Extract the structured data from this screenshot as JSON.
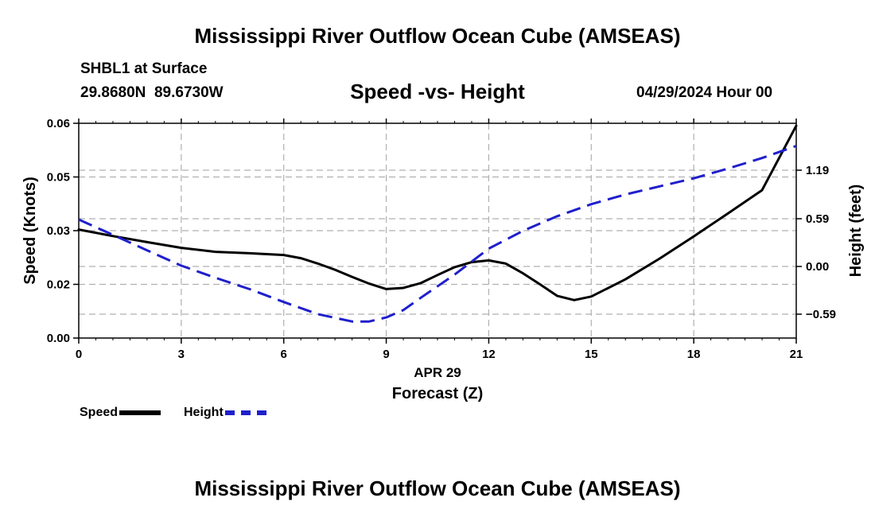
{
  "header": {
    "title": "Mississippi River Outflow Ocean Cube (AMSEAS)",
    "station": "SHBL1 at Surface",
    "coords": "29.8680N  89.6730W",
    "subtitle": "Speed -vs- Height",
    "datetime": "04/29/2024 Hour 00"
  },
  "footer": {
    "title": "Mississippi River Outflow Ocean Cube (AMSEAS)"
  },
  "legend": {
    "speed_label": "Speed",
    "height_label": "Height"
  },
  "colors": {
    "speed": "#000000",
    "height": "#1f1fcc",
    "grid": "#b0b0b0"
  },
  "chart_data": {
    "type": "line",
    "title": "Speed -vs- Height",
    "xlabel": "Forecast (Z)",
    "xlabel_date": "APR 29",
    "ylabel": "Speed (Knots)",
    "y2label": "Height (feet)",
    "xlim": [
      0,
      21
    ],
    "ylim": [
      0,
      0.06
    ],
    "y2lim": [
      -0.885,
      1.77
    ],
    "x_ticks": [
      0,
      3,
      6,
      9,
      12,
      15,
      18,
      21
    ],
    "x_tick_labels": [
      "0",
      "3",
      "6",
      "9",
      "12",
      "15",
      "18",
      "21"
    ],
    "y_ticks": [
      0,
      0.015,
      0.03,
      0.045,
      0.06
    ],
    "y_tick_labels": [
      "0.00",
      "0.02",
      "0.03",
      "0.05",
      "0.06"
    ],
    "y2_ticks": [
      -0.59,
      0.0,
      0.59,
      1.19
    ],
    "y2_tick_labels": [
      "−0.59",
      "0.00",
      "0.59",
      "1.19"
    ],
    "grid": true,
    "series": [
      {
        "name": "Speed",
        "axis": "left",
        "style": "solid",
        "x": [
          0,
          1,
          2,
          3,
          4,
          5,
          6,
          6.5,
          7,
          7.5,
          8,
          8.5,
          9,
          9.5,
          10,
          10.5,
          11,
          11.5,
          12,
          12.5,
          13,
          13.5,
          14,
          14.5,
          15,
          16,
          17,
          18,
          19,
          20,
          21
        ],
        "values": [
          0.0303,
          0.0285,
          0.0268,
          0.0252,
          0.0241,
          0.0237,
          0.0232,
          0.0223,
          0.0208,
          0.0191,
          0.0171,
          0.0152,
          0.0137,
          0.014,
          0.0153,
          0.0176,
          0.0198,
          0.0212,
          0.0217,
          0.0208,
          0.0181,
          0.015,
          0.0118,
          0.0106,
          0.0116,
          0.0164,
          0.0222,
          0.0284,
          0.0348,
          0.0413,
          0.0593
        ]
      },
      {
        "name": "Height",
        "axis": "right",
        "style": "dashed",
        "x": [
          0,
          1,
          2,
          3,
          4,
          5,
          6,
          7,
          8,
          8.5,
          9,
          9.5,
          10,
          11,
          12,
          13,
          14,
          15,
          16,
          17,
          18,
          19,
          20,
          21
        ],
        "values": [
          0.58,
          0.39,
          0.2,
          0.01,
          -0.14,
          -0.28,
          -0.44,
          -0.59,
          -0.68,
          -0.68,
          -0.63,
          -0.54,
          -0.39,
          -0.1,
          0.22,
          0.44,
          0.62,
          0.77,
          0.89,
          0.99,
          1.09,
          1.21,
          1.34,
          1.49
        ]
      }
    ]
  }
}
